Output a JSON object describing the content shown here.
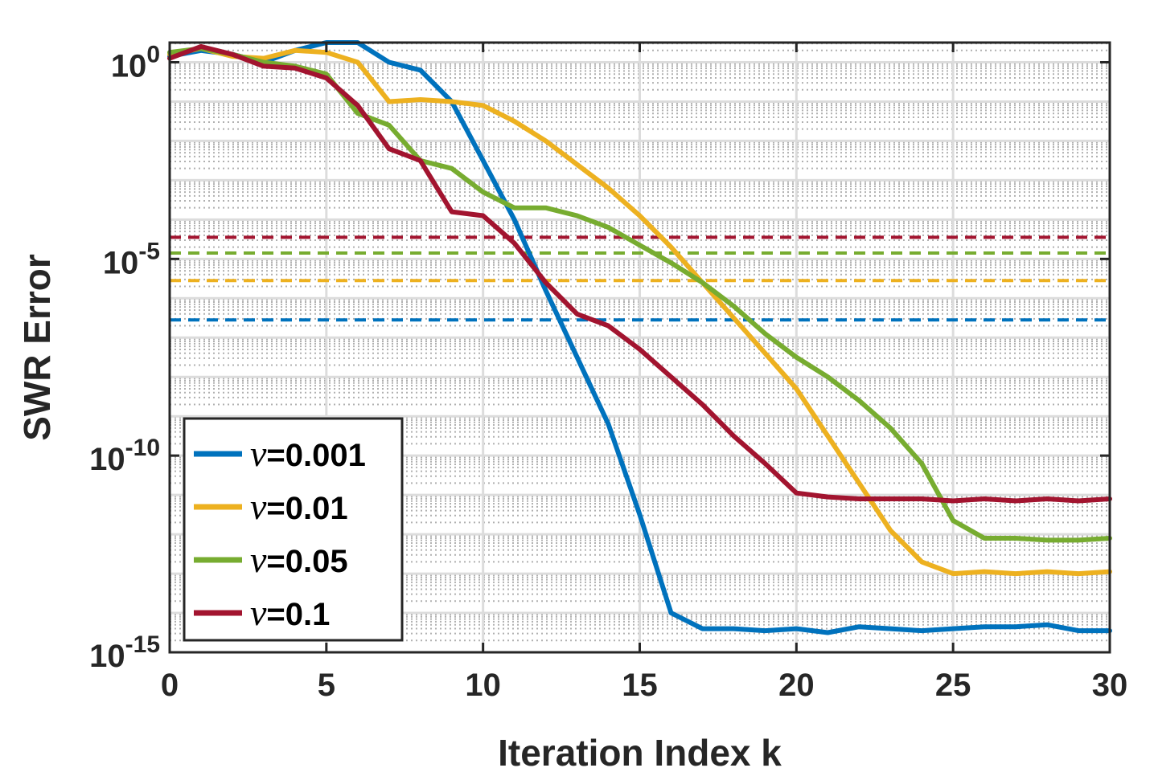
{
  "chart_data": {
    "type": "line",
    "yscale": "log",
    "xlabel": "Iteration Index k",
    "ylabel": "SWR Error",
    "xlim": [
      0,
      30
    ],
    "ylim_exponent": [
      -15,
      0.5
    ],
    "xticks": [
      0,
      5,
      10,
      15,
      20,
      25,
      30
    ],
    "xtick_labels": [
      "0",
      "5",
      "10",
      "15",
      "20",
      "25",
      "30"
    ],
    "yticks_exponent": [
      0,
      -5,
      -10,
      -15
    ],
    "ytick_labels": [
      {
        "base": "10",
        "exp": "0"
      },
      {
        "base": "10",
        "exp": "-5"
      },
      {
        "base": "10",
        "exp": "-10"
      },
      {
        "base": "10",
        "exp": "-15"
      }
    ],
    "grid": true,
    "legend_position": "bottom-left",
    "x": [
      0,
      1,
      2,
      3,
      4,
      5,
      6,
      7,
      8,
      9,
      10,
      11,
      12,
      13,
      14,
      15,
      16,
      17,
      18,
      19,
      20,
      21,
      22,
      23,
      24,
      25,
      26,
      27,
      28,
      29,
      30
    ],
    "series": [
      {
        "name_symbol": "ν",
        "name_value": "=0.001",
        "color": "#0072BD",
        "log10_values": [
          0.15,
          0.3,
          0.2,
          0.0,
          0.3,
          0.6,
          0.5,
          0.0,
          -0.2,
          -1.0,
          -2.5,
          -4.0,
          -5.8,
          -7.5,
          -9.2,
          -11.5,
          -14.0,
          -14.4,
          -14.4,
          -14.45,
          -14.4,
          -14.5,
          -14.35,
          -14.4,
          -14.45,
          -14.4,
          -14.35,
          -14.35,
          -14.3,
          -14.45,
          -14.45
        ],
        "threshold_log10": -6.55
      },
      {
        "name_symbol": "ν",
        "name_value": "=0.01",
        "color": "#EDB120",
        "log10_values": [
          0.2,
          0.35,
          0.15,
          0.1,
          0.3,
          0.25,
          0.0,
          -1.0,
          -0.95,
          -1.0,
          -1.1,
          -1.5,
          -2.0,
          -2.6,
          -3.2,
          -3.9,
          -4.7,
          -5.6,
          -6.5,
          -7.4,
          -8.3,
          -9.5,
          -10.7,
          -11.9,
          -12.7,
          -13.0,
          -12.95,
          -13.0,
          -12.95,
          -13.0,
          -12.95
        ],
        "threshold_log10": -5.55
      },
      {
        "name_symbol": "ν",
        "name_value": "=0.05",
        "color": "#77AC30",
        "log10_values": [
          0.25,
          0.35,
          0.2,
          0.0,
          -0.1,
          -0.3,
          -1.3,
          -1.6,
          -2.5,
          -2.7,
          -3.3,
          -3.7,
          -3.7,
          -3.9,
          -4.2,
          -4.65,
          -5.1,
          -5.6,
          -6.2,
          -6.9,
          -7.5,
          -8.0,
          -8.6,
          -9.3,
          -10.2,
          -11.65,
          -12.1,
          -12.1,
          -12.15,
          -12.15,
          -12.1
        ],
        "threshold_log10": -4.85
      },
      {
        "name_symbol": "ν",
        "name_value": "=0.1",
        "color": "#A2142F",
        "log10_values": [
          0.1,
          0.4,
          0.2,
          -0.1,
          -0.15,
          -0.4,
          -1.1,
          -2.2,
          -2.5,
          -3.8,
          -3.9,
          -4.6,
          -5.6,
          -6.4,
          -6.7,
          -7.3,
          -8.0,
          -8.7,
          -9.5,
          -10.2,
          -10.95,
          -11.05,
          -11.1,
          -11.1,
          -11.1,
          -11.15,
          -11.1,
          -11.15,
          -11.1,
          -11.15,
          -11.1
        ],
        "threshold_log10": -4.45
      }
    ]
  }
}
